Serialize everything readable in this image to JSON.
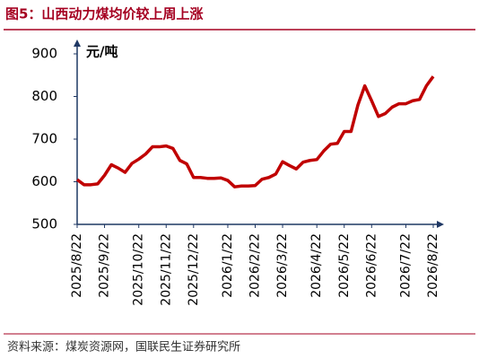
{
  "chart_data": {
    "type": "line",
    "title": "图5：山西动力煤均价较上周上涨",
    "y_label": "元/吨",
    "source": "资料来源：煤炭资源网，国联民生证券研究所",
    "categories": [
      "2025/8/22",
      null,
      null,
      null,
      "2025/9/22",
      null,
      null,
      null,
      null,
      "2025/10/22",
      null,
      null,
      null,
      "2025/11/22",
      null,
      null,
      null,
      "2025/12/22",
      null,
      null,
      null,
      null,
      "2026/1/22",
      null,
      null,
      null,
      "2026/2/22",
      null,
      null,
      null,
      "2026/3/22",
      null,
      null,
      null,
      null,
      "2026/4/22",
      null,
      null,
      null,
      "2026/5/22",
      null,
      null,
      null,
      "2026/6/22",
      null,
      null,
      null,
      null,
      "2026/7/22",
      null,
      null,
      null,
      "2026/8/22"
    ],
    "series": [
      {
        "name": "山西动力煤均价",
        "color": "#c00000",
        "values": [
          605,
          593,
          593,
          595,
          615,
          640,
          632,
          622,
          643,
          653,
          665,
          682,
          682,
          684,
          678,
          650,
          642,
          610,
          610,
          608,
          608,
          609,
          603,
          588,
          590,
          590,
          591,
          606,
          610,
          618,
          647,
          638,
          630,
          646,
          650,
          652,
          672,
          688,
          690,
          718,
          718,
          780,
          825,
          790,
          753,
          760,
          775,
          783,
          783,
          790,
          793,
          825,
          847
        ]
      }
    ],
    "ylim": [
      500,
      900
    ],
    "yticks": [
      500,
      600,
      700,
      800,
      900
    ],
    "grid": false
  }
}
